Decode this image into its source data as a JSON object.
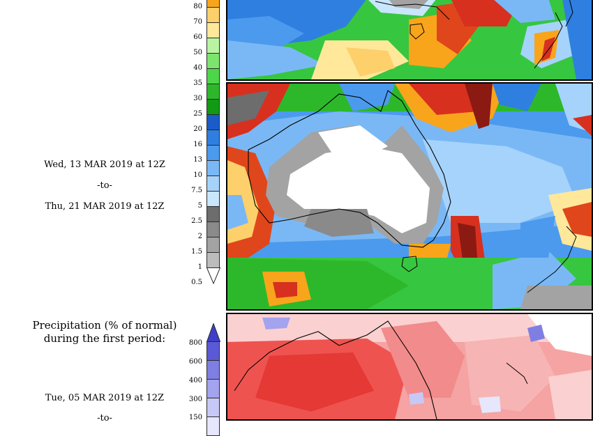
{
  "middle_period": {
    "start": "Wed, 13 MAR 2019 at 12Z",
    "to": "-to-",
    "end": "Thu, 21 MAR 2019 at 12Z"
  },
  "upper_legend_ticks": [
    "80",
    "70",
    "60",
    "50",
    "40",
    "35",
    "30",
    "25",
    "20",
    "16",
    "13",
    "10",
    "7.5",
    "5",
    "2.5",
    "2",
    "1.5",
    "1",
    "0.5"
  ],
  "upper_legend_colors": [
    "#f9a51b",
    "#fdd06c",
    "#ffe89a",
    "#b9f4a2",
    "#7de56f",
    "#4ed64a",
    "#2db82b",
    "#129a14",
    "#1a5dc9",
    "#2f7fe0",
    "#4b9aee",
    "#7ab8f5",
    "#a6d3fb",
    "#c9e6fd",
    "#6d6d6d",
    "#8a8a8a",
    "#a3a3a3",
    "#bcbcbc",
    "#ffffff"
  ],
  "lower_section": {
    "heading_line1": "Precipitation (% of normal)",
    "heading_line2": "during the first period:",
    "start": "Tue, 05 MAR 2019 at 12Z",
    "to": "-to-"
  },
  "lower_legend_ticks": [
    "800",
    "600",
    "400",
    "300",
    "150"
  ],
  "lower_legend_colors": [
    "#5a5ad6",
    "#7f7fe3",
    "#a3a3ee",
    "#c8c8f6",
    "#e6e6fc"
  ]
}
